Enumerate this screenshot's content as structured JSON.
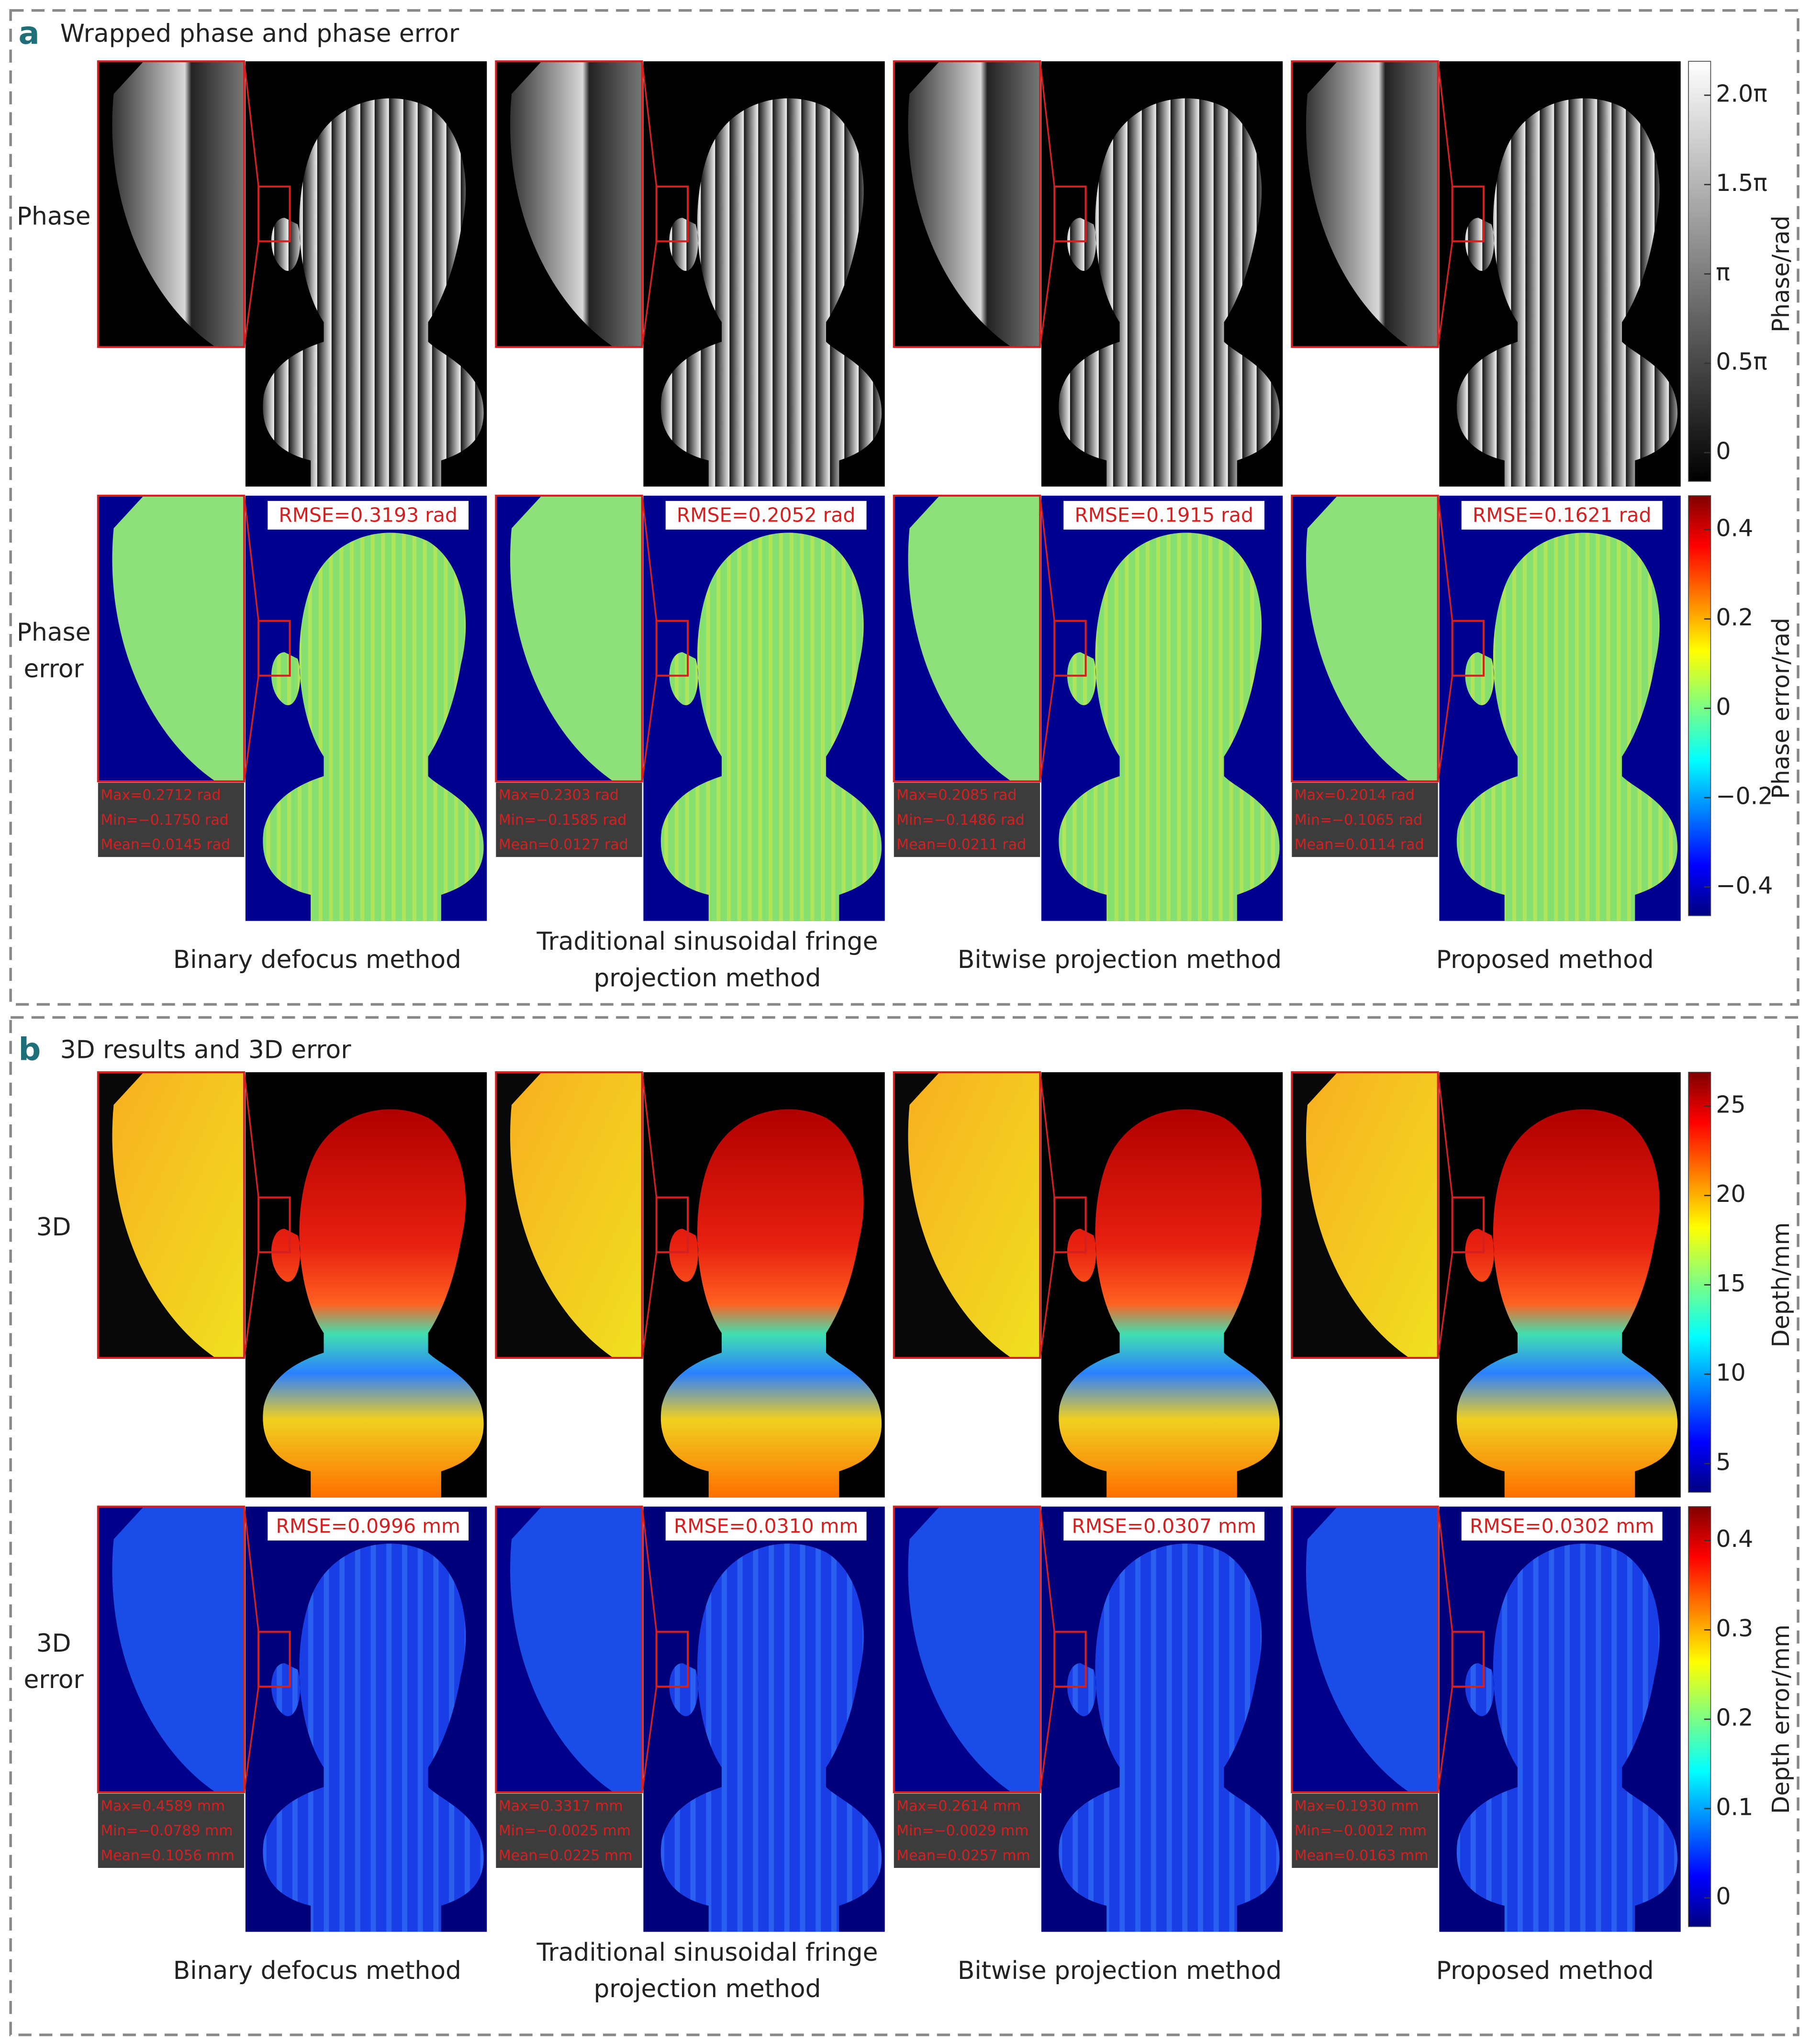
{
  "panels": [
    {
      "letter": "a",
      "title": "Wrapped phase and phase error",
      "columns": [
        [
          "Binary defocus method"
        ],
        [
          "Traditional sinusoidal fringe",
          "projection method"
        ],
        [
          "Bitwise projection method"
        ],
        [
          "Proposed method"
        ]
      ],
      "rows": [
        {
          "label": [
            "Phase"
          ],
          "colorbar_label": "Phase/rad",
          "colorbar_ticks": [
            "2.0π",
            "1.5π",
            "π",
            "0.5π",
            "0"
          ]
        },
        {
          "label": [
            "Phase",
            "error"
          ],
          "colorbar_label": "Phase error/rad",
          "colorbar_ticks": [
            "0.4",
            "0.2",
            "0",
            "−0.2",
            "−0.4"
          ],
          "rmse": [
            "RMSE=0.3193 rad",
            "RMSE=0.2052 rad",
            "RMSE=0.1915 rad",
            "RMSE=0.1621 rad"
          ],
          "stats": [
            [
              "Max=0.2712 rad",
              "Min=−0.1750 rad",
              "Mean=0.0145 rad"
            ],
            [
              "Max=0.2303 rad",
              "Min=−0.1585 rad",
              "Mean=0.0127 rad"
            ],
            [
              "Max=0.2085 rad",
              "Min=−0.1486 rad",
              "Mean=0.0211 rad"
            ],
            [
              "Max=0.2014 rad",
              "Min=−0.1065 rad",
              "Mean=0.0114 rad"
            ]
          ]
        }
      ]
    },
    {
      "letter": "b",
      "title": "3D results and 3D error",
      "columns": [
        [
          "Binary defocus method"
        ],
        [
          "Traditional sinusoidal fringe",
          "projection method"
        ],
        [
          "Bitwise projection method"
        ],
        [
          "Proposed method"
        ]
      ],
      "rows": [
        {
          "label": [
            "3D"
          ],
          "colorbar_label": "Depth/mm",
          "colorbar_ticks": [
            "25",
            "20",
            "15",
            "10",
            "5"
          ]
        },
        {
          "label": [
            "3D",
            "error"
          ],
          "colorbar_label": "Depth error/mm",
          "colorbar_ticks": [
            "0.4",
            "0.3",
            "0.2",
            "0.1",
            "0"
          ],
          "rmse": [
            "RMSE=0.0996 mm",
            "RMSE=0.0310 mm",
            "RMSE=0.0307 mm",
            "RMSE=0.0302 mm"
          ],
          "stats": [
            [
              "Max=0.4589 mm",
              "Min=−0.0789 mm",
              "Mean=0.1056 mm"
            ],
            [
              "Max=0.3317 mm",
              "Min=−0.0025 mm",
              "Mean=0.0225 mm"
            ],
            [
              "Max=0.2614 mm",
              "Min=−0.0029 mm",
              "Mean=0.0257 mm"
            ],
            [
              "Max=0.1930 mm",
              "Min=−0.0012 mm",
              "Mean=0.0163 mm"
            ]
          ]
        }
      ]
    }
  ]
}
